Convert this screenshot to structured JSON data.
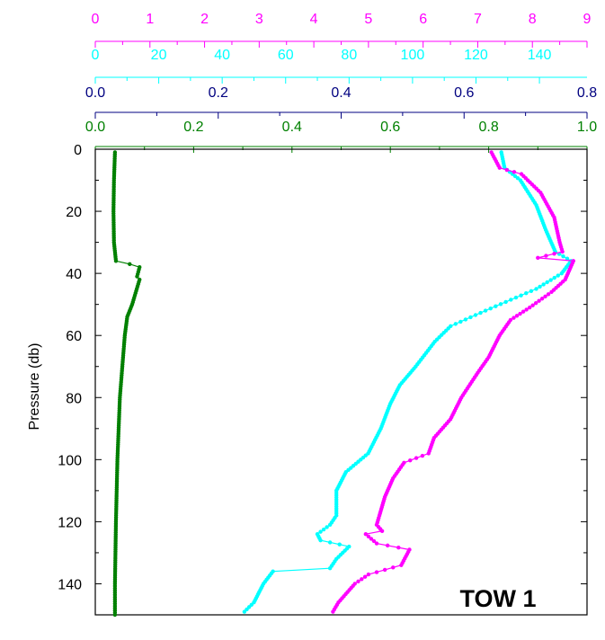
{
  "chart_data": {
    "type": "line",
    "ylabel": "Pressure (db)",
    "annotation": "TOW 1",
    "y_axis": {
      "range": [
        0,
        150
      ],
      "inverted": true,
      "ticks": [
        "0",
        "20",
        "40",
        "60",
        "80",
        "100",
        "120",
        "140"
      ],
      "tick_values": [
        0,
        20,
        40,
        60,
        80,
        100,
        120,
        140
      ]
    },
    "x_axes": [
      {
        "id": "magenta",
        "color": "#ff00ff",
        "range": [
          0,
          9
        ],
        "ticks": [
          "0",
          "1",
          "2",
          "3",
          "4",
          "5",
          "6",
          "7",
          "8",
          "9"
        ],
        "tick_values": [
          0,
          1,
          2,
          3,
          4,
          5,
          6,
          7,
          8,
          9
        ]
      },
      {
        "id": "cyan",
        "color": "#00ffff",
        "range": [
          0,
          155
        ],
        "ticks": [
          "0",
          "20",
          "40",
          "60",
          "80",
          "100",
          "120",
          "140"
        ],
        "tick_values": [
          0,
          20,
          40,
          60,
          80,
          100,
          120,
          140
        ]
      },
      {
        "id": "navy",
        "color": "#000080",
        "range": [
          0,
          0.8
        ],
        "ticks": [
          "0.0",
          "0.2",
          "0.4",
          "0.6",
          "0.8"
        ],
        "tick_values": [
          0,
          0.2,
          0.4,
          0.6,
          0.8
        ]
      },
      {
        "id": "green",
        "color": "#008000",
        "range": [
          0,
          1.0
        ],
        "ticks": [
          "0.0",
          "0.2",
          "0.4",
          "0.6",
          "0.8",
          "1.0"
        ],
        "tick_values": [
          0,
          0.2,
          0.4,
          0.6,
          0.8,
          1.0
        ]
      }
    ],
    "series": [
      {
        "axis": "green",
        "color": "#008000",
        "points": [
          [
            0.04,
            1
          ],
          [
            0.038,
            10
          ],
          [
            0.037,
            20
          ],
          [
            0.038,
            30
          ],
          [
            0.042,
            36
          ],
          [
            0.07,
            37
          ],
          [
            0.09,
            38
          ],
          [
            0.085,
            41
          ],
          [
            0.09,
            42
          ],
          [
            0.075,
            50
          ],
          [
            0.065,
            54
          ],
          [
            0.06,
            60
          ],
          [
            0.055,
            70
          ],
          [
            0.05,
            80
          ],
          [
            0.045,
            100
          ],
          [
            0.042,
            120
          ],
          [
            0.04,
            140
          ],
          [
            0.04,
            150
          ]
        ]
      },
      {
        "axis": "cyan",
        "color": "#00ffff",
        "points": [
          [
            128,
            1
          ],
          [
            129,
            6
          ],
          [
            134,
            10
          ],
          [
            139,
            18
          ],
          [
            142,
            26
          ],
          [
            145,
            33
          ],
          [
            150,
            36
          ],
          [
            147,
            40
          ],
          [
            139,
            45
          ],
          [
            123,
            52
          ],
          [
            112,
            57
          ],
          [
            107,
            62
          ],
          [
            101,
            70
          ],
          [
            96,
            76
          ],
          [
            93,
            82
          ],
          [
            90,
            90
          ],
          [
            86,
            98
          ],
          [
            79,
            104
          ],
          [
            76,
            110
          ],
          [
            76,
            118
          ],
          [
            74,
            121
          ],
          [
            70,
            124
          ],
          [
            71,
            126
          ],
          [
            80,
            128
          ],
          [
            76,
            132
          ],
          [
            74,
            135
          ],
          [
            56,
            136
          ],
          [
            53,
            140
          ],
          [
            50,
            146
          ],
          [
            47,
            149
          ]
        ]
      },
      {
        "axis": "magenta",
        "color": "#ff00ff",
        "points": [
          [
            7.25,
            1
          ],
          [
            7.4,
            6
          ],
          [
            7.8,
            8
          ],
          [
            8.15,
            14
          ],
          [
            8.4,
            22
          ],
          [
            8.5,
            30
          ],
          [
            8.55,
            33
          ],
          [
            8.1,
            35
          ],
          [
            8.75,
            36
          ],
          [
            8.6,
            42
          ],
          [
            8.35,
            46
          ],
          [
            7.95,
            51
          ],
          [
            7.6,
            55
          ],
          [
            7.4,
            60
          ],
          [
            7.2,
            67
          ],
          [
            7.0,
            72
          ],
          [
            6.7,
            80
          ],
          [
            6.5,
            87
          ],
          [
            6.2,
            93
          ],
          [
            6.1,
            98
          ],
          [
            5.65,
            101
          ],
          [
            5.45,
            106
          ],
          [
            5.3,
            112
          ],
          [
            5.2,
            118
          ],
          [
            5.15,
            121
          ],
          [
            5.25,
            123
          ],
          [
            4.95,
            124
          ],
          [
            5.15,
            127
          ],
          [
            5.75,
            129
          ],
          [
            5.6,
            134
          ],
          [
            5.0,
            137
          ],
          [
            4.75,
            140
          ],
          [
            4.45,
            146
          ],
          [
            4.35,
            149
          ]
        ]
      }
    ]
  }
}
